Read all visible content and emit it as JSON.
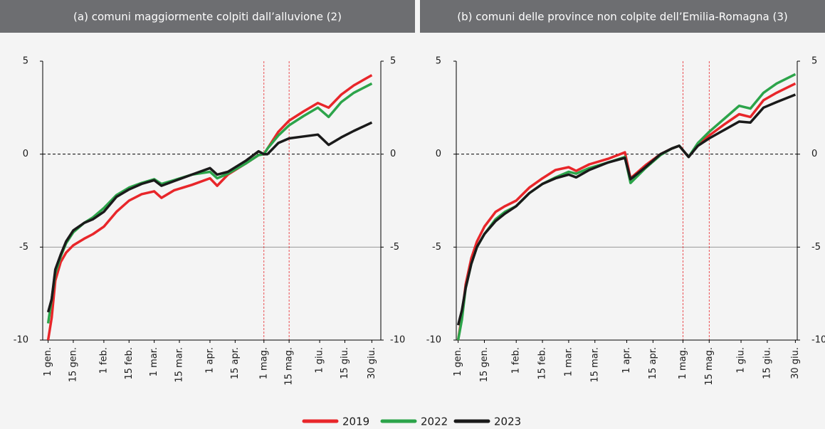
{
  "chart_data": [
    {
      "type": "line",
      "title": "(a) comuni maggiormente colpiti dall’alluvione (2)",
      "x": [
        0,
        2,
        4,
        7,
        10,
        14,
        20,
        25,
        31,
        38,
        45,
        52,
        59,
        63,
        70,
        80,
        90,
        94,
        100,
        110,
        117,
        120,
        122,
        128,
        134,
        142,
        150,
        156,
        163,
        170,
        180
      ],
      "xlim": [
        -3,
        185
      ],
      "xticks": [
        {
          "value": 0,
          "label": "1 gen."
        },
        {
          "value": 14,
          "label": "15 gen."
        },
        {
          "value": 31,
          "label": "1 feb."
        },
        {
          "value": 45,
          "label": "15 feb."
        },
        {
          "value": 59,
          "label": "1 mar."
        },
        {
          "value": 73,
          "label": "15 mar."
        },
        {
          "value": 90,
          "label": "1 apr."
        },
        {
          "value": 104,
          "label": "15 apr."
        },
        {
          "value": 120,
          "label": "1 mag."
        },
        {
          "value": 134,
          "label": "15 mag."
        },
        {
          "value": 151,
          "label": "1 giu."
        },
        {
          "value": 165,
          "label": "15 giu."
        },
        {
          "value": 180,
          "label": "30 giu."
        }
      ],
      "ylim": [
        -10,
        5
      ],
      "yticks": [
        -10,
        -5,
        0,
        5
      ],
      "grid": true,
      "zero_line": true,
      "vlines": [
        120,
        134
      ],
      "series": [
        {
          "name": "2019",
          "color": "#e8262a",
          "values": [
            -10,
            -8.8,
            -6.8,
            -5.8,
            -5.3,
            -4.9,
            -4.55,
            -4.3,
            -3.9,
            -3.1,
            -2.5,
            -2.15,
            -2.0,
            -2.35,
            -1.95,
            -1.65,
            -1.3,
            -1.7,
            -1.1,
            -0.5,
            -0.05,
            0.0,
            0.3,
            1.2,
            1.8,
            2.3,
            2.75,
            2.5,
            3.2,
            3.7,
            4.25
          ]
        },
        {
          "name": "2022",
          "color": "#2ca44a",
          "values": [
            -9.1,
            -7.8,
            -6.4,
            -5.5,
            -4.8,
            -4.2,
            -3.7,
            -3.4,
            -2.9,
            -2.2,
            -1.8,
            -1.55,
            -1.35,
            -1.6,
            -1.4,
            -1.1,
            -0.95,
            -1.3,
            -1.05,
            -0.5,
            -0.05,
            0.0,
            0.3,
            1.0,
            1.55,
            2.05,
            2.5,
            2.0,
            2.8,
            3.3,
            3.8
          ]
        },
        {
          "name": "2023",
          "color": "#1a1a1a",
          "values": [
            -8.5,
            -7.8,
            -6.2,
            -5.4,
            -4.7,
            -4.1,
            -3.7,
            -3.5,
            -3.1,
            -2.3,
            -1.9,
            -1.6,
            -1.4,
            -1.7,
            -1.45,
            -1.1,
            -0.75,
            -1.1,
            -0.95,
            -0.35,
            0.15,
            0.0,
            0.0,
            0.6,
            0.85,
            0.95,
            1.05,
            0.5,
            0.9,
            1.25,
            1.7
          ]
        }
      ]
    },
    {
      "type": "line",
      "title": "(b) comuni delle province non colpite dell’Emilia-Romagna (3)",
      "x": [
        0,
        2,
        4,
        7,
        10,
        14,
        20,
        25,
        31,
        38,
        45,
        52,
        59,
        63,
        70,
        80,
        89,
        92,
        100,
        108,
        114,
        118,
        123,
        128,
        134,
        142,
        150,
        156,
        163,
        170,
        180
      ],
      "xlim": [
        -1,
        181
      ],
      "xticks": [
        {
          "value": 0,
          "label": "1 gen."
        },
        {
          "value": 14,
          "label": "15 gen."
        },
        {
          "value": 31,
          "label": "1 feb."
        },
        {
          "value": 45,
          "label": "15 feb."
        },
        {
          "value": 59,
          "label": "1 mar."
        },
        {
          "value": 73,
          "label": "15 mar."
        },
        {
          "value": 90,
          "label": "1 apr."
        },
        {
          "value": 104,
          "label": "15 apr."
        },
        {
          "value": 120,
          "label": "1 mag."
        },
        {
          "value": 134,
          "label": "15 mag."
        },
        {
          "value": 151,
          "label": "1 giu."
        },
        {
          "value": 165,
          "label": "15 giu."
        },
        {
          "value": 180,
          "label": "30 giu."
        }
      ],
      "ylim": [
        -10,
        5
      ],
      "yticks": [
        -10,
        -5,
        0,
        5
      ],
      "grid": true,
      "zero_line": true,
      "vlines": [
        120,
        134
      ],
      "series": [
        {
          "name": "2019",
          "color": "#e8262a",
          "values": [
            -10,
            -8.7,
            -7.0,
            -5.6,
            -4.7,
            -3.9,
            -3.1,
            -2.8,
            -2.5,
            -1.8,
            -1.3,
            -0.85,
            -0.7,
            -0.9,
            -0.55,
            -0.25,
            0.1,
            -1.3,
            -0.6,
            0.0,
            0.3,
            0.45,
            -0.15,
            0.5,
            1.0,
            1.6,
            2.15,
            2.0,
            2.9,
            3.3,
            3.8
          ]
        },
        {
          "name": "2022",
          "color": "#2ca44a",
          "values": [
            -10,
            -8.9,
            -7.2,
            -5.9,
            -5.0,
            -4.3,
            -3.5,
            -3.1,
            -2.8,
            -2.1,
            -1.6,
            -1.25,
            -0.95,
            -1.05,
            -0.75,
            -0.45,
            -0.15,
            -1.55,
            -0.75,
            -0.05,
            0.3,
            0.45,
            -0.15,
            0.6,
            1.2,
            1.9,
            2.6,
            2.45,
            3.3,
            3.8,
            4.3
          ]
        },
        {
          "name": "2023",
          "color": "#1a1a1a",
          "values": [
            -9.2,
            -8.4,
            -7.2,
            -5.9,
            -5.0,
            -4.3,
            -3.6,
            -3.2,
            -2.8,
            -2.1,
            -1.6,
            -1.3,
            -1.1,
            -1.25,
            -0.85,
            -0.45,
            -0.2,
            -1.35,
            -0.7,
            0.0,
            0.3,
            0.45,
            -0.15,
            0.45,
            0.85,
            1.3,
            1.75,
            1.7,
            2.5,
            2.8,
            3.2
          ]
        }
      ]
    }
  ]
}
